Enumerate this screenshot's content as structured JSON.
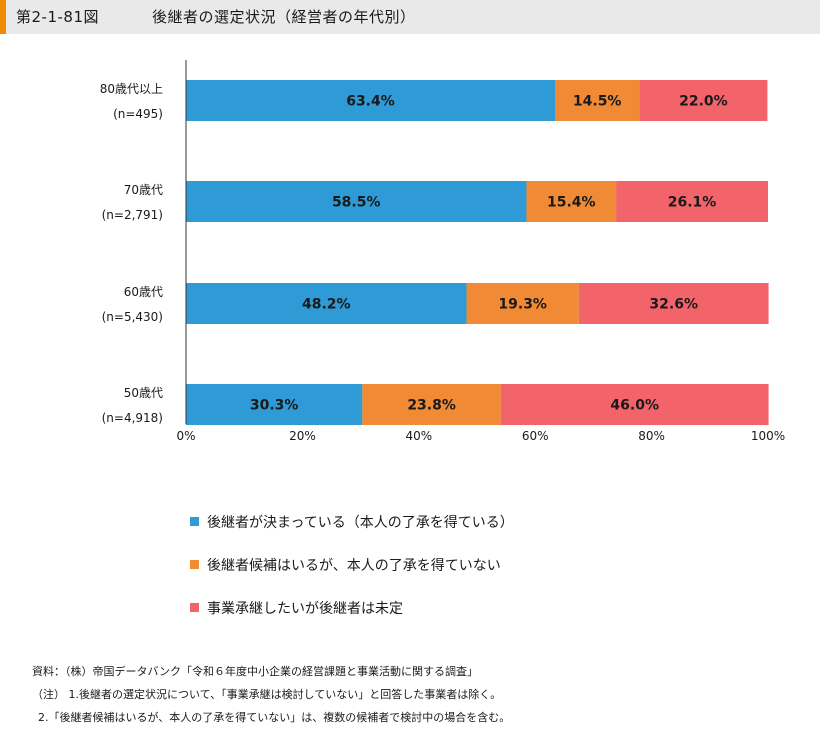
{
  "header": {
    "figure_number": "第2-1-81図",
    "title": "後継者の選定状況（経営者の年代別）"
  },
  "chart_data": {
    "type": "bar",
    "orientation": "horizontal",
    "stacked": true,
    "categories": [
      {
        "name": "80歳代以上",
        "n": "(n=495)"
      },
      {
        "name": "70歳代",
        "n": "(n=2,791)"
      },
      {
        "name": "60歳代",
        "n": "(n=5,430)"
      },
      {
        "name": "50歳代",
        "n": "(n=4,918)"
      }
    ],
    "series": [
      {
        "name": "後継者が決まっている（本人の了承を得ている）",
        "color": "#2e9ad6",
        "values": [
          63.4,
          58.5,
          48.2,
          30.3
        ],
        "labels": [
          "63.4%",
          "58.5%",
          "48.2%",
          "30.3%"
        ]
      },
      {
        "name": "後継者候補はいるが、本人の了承を得ていない",
        "color": "#f08a34",
        "values": [
          14.5,
          15.4,
          19.3,
          23.8
        ],
        "labels": [
          "14.5%",
          "15.4%",
          "19.3%",
          "23.8%"
        ]
      },
      {
        "name": "事業承継したいが後継者は未定",
        "color": "#f2646a",
        "values": [
          22.0,
          26.1,
          32.6,
          46.0
        ],
        "labels": [
          "22.0%",
          "26.1%",
          "32.6%",
          "46.0%"
        ]
      }
    ],
    "xlim": [
      0,
      100
    ],
    "xticks": [
      "0%",
      "20%",
      "40%",
      "60%",
      "80%",
      "100%"
    ],
    "legend_position": "bottom"
  },
  "notes": {
    "source": "資料：（株）帝国データバンク「令和６年度中小企業の経営課題と事業活動に関する調査」",
    "note1": "（注） 1.後継者の選定状況について、「事業承継は検討していない」と回答した事業者は除く。",
    "note2": "2.「後継者候補はいるが、本人の了承を得ていない」は、複数の候補者で検討中の場合を含む。"
  }
}
